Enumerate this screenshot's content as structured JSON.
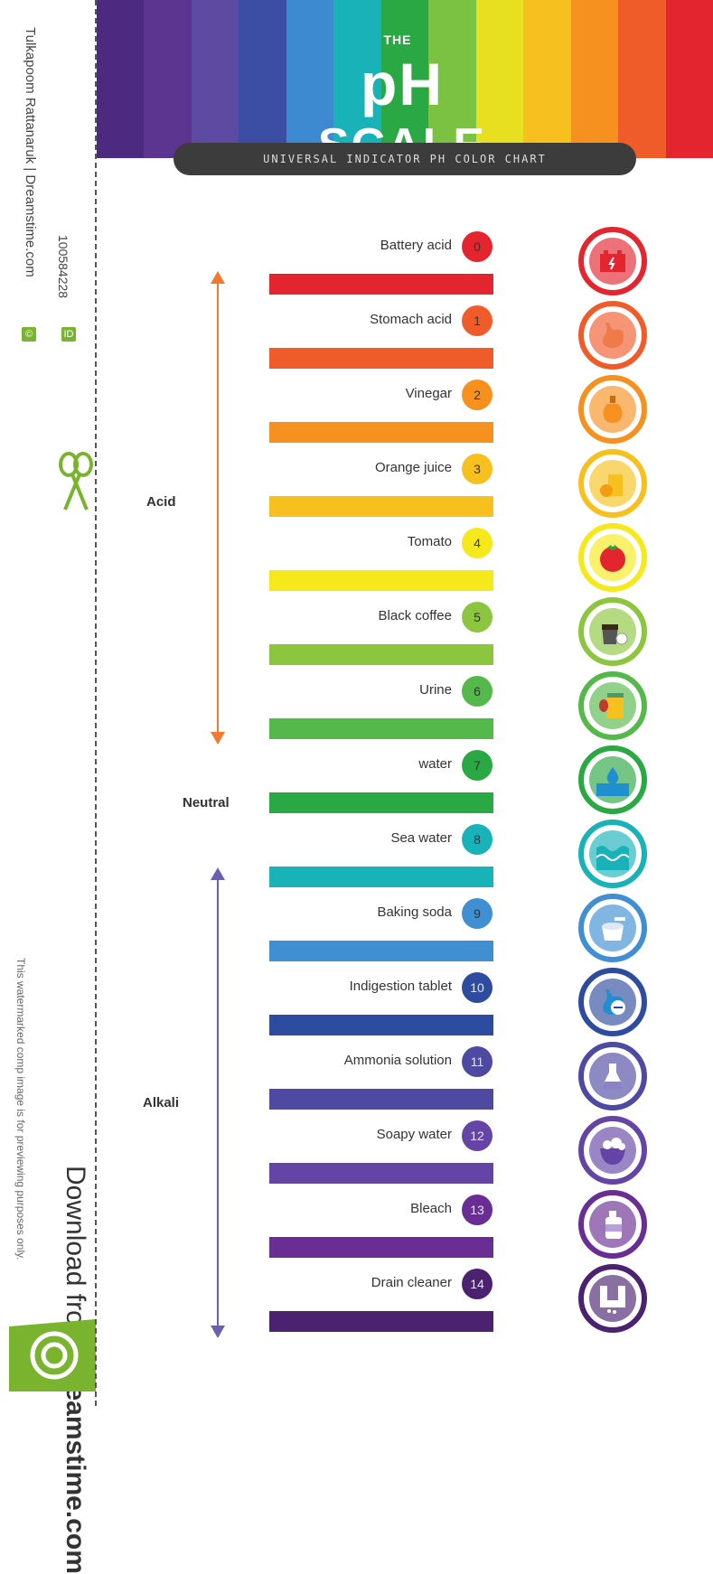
{
  "header": {
    "title_prefix": "THE",
    "title_ph": "pH",
    "title_scale": "SCALE",
    "subtitle": "UNIVERSAL INDICATOR PH COLOR CHART",
    "stripe_colors": [
      "#4b2a7f",
      "#5b3590",
      "#5e4aa0",
      "#3c4ea4",
      "#3e8ad0",
      "#18b2b8",
      "#2aa843",
      "#7cc242",
      "#e6e020",
      "#f6c11e",
      "#f6911f",
      "#ef5c2a",
      "#e3252f"
    ]
  },
  "groups": {
    "acid": "Acid",
    "neutral": "Neutral",
    "alkali": "Alkali"
  },
  "scale": [
    {
      "ph": "0",
      "label": "Battery acid",
      "color": "#e3252f",
      "icon": "battery-icon"
    },
    {
      "ph": "1",
      "label": "Stomach acid",
      "color": "#ef5c2a",
      "icon": "stomach-icon"
    },
    {
      "ph": "2",
      "label": "Vinegar",
      "color": "#f6911f",
      "icon": "vinegar-bottle-icon"
    },
    {
      "ph": "3",
      "label": "Orange juice",
      "color": "#f6c11e",
      "icon": "orange-juice-icon"
    },
    {
      "ph": "4",
      "label": "Tomato",
      "color": "#f5e81b",
      "icon": "tomato-icon"
    },
    {
      "ph": "5",
      "label": "Black coffee",
      "color": "#8cc63f",
      "icon": "coffee-icon"
    },
    {
      "ph": "6",
      "label": "Urine",
      "color": "#55b84a",
      "icon": "urine-icon"
    },
    {
      "ph": "7",
      "label": "water",
      "color": "#2aa843",
      "icon": "water-drop-icon"
    },
    {
      "ph": "8",
      "label": "Sea water",
      "color": "#18b2b8",
      "icon": "sea-wave-icon"
    },
    {
      "ph": "9",
      "label": "Baking soda",
      "color": "#3f8fd2",
      "icon": "baking-soda-icon"
    },
    {
      "ph": "10",
      "label": "Indigestion tablet",
      "color": "#2e4c9f",
      "icon": "indigestion-icon"
    },
    {
      "ph": "11",
      "label": "Ammonia solution",
      "color": "#4e4aa2",
      "icon": "flask-icon"
    },
    {
      "ph": "12",
      "label": "Soapy water",
      "color": "#6445a5",
      "icon": "soap-bubbles-icon"
    },
    {
      "ph": "13",
      "label": "Bleach",
      "color": "#6a2d93",
      "icon": "bleach-bottle-icon"
    },
    {
      "ph": "14",
      "label": "Drain cleaner",
      "color": "#4a2270",
      "icon": "drain-pipe-icon"
    }
  ],
  "watermark": {
    "credit": "Tulkapoom Rattanaruk | Dreamstime.com",
    "id_label": "ID",
    "id_value": "100584228",
    "copyright_symbol": "©",
    "download_prefix": "Download from",
    "download_site": "Dreamstime.com",
    "notice": "This watermarked comp image is for previewing purposes only."
  }
}
